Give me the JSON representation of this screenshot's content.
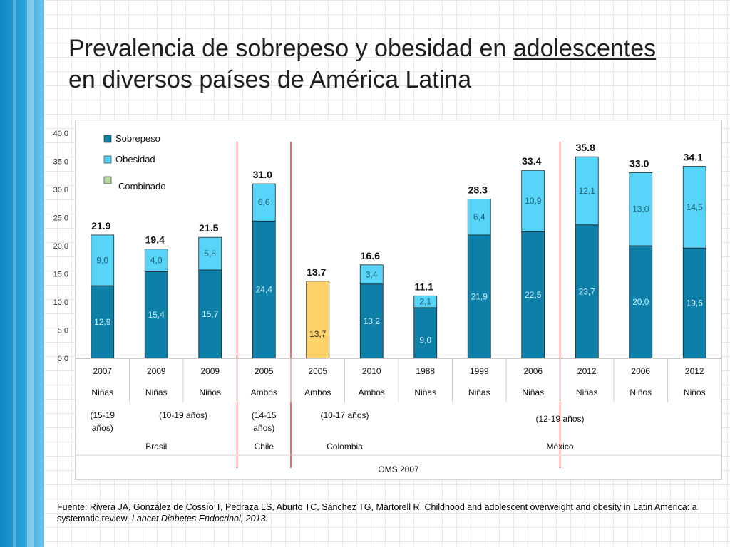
{
  "title": {
    "line1_prefix": "Prevalencia de sobrepeso y obesidad en ",
    "line1_underlined": "adolescentes",
    "line2": "en diversos países de América Latina"
  },
  "colors": {
    "sobrepeso": "#0e7fa6",
    "obesidad": "#57d4f7",
    "combinado": "#ffd36b",
    "combinado_legend": "#b5d99c",
    "separator": "#e0362b",
    "bar_text": "#c9f1ff",
    "axis": "#888888"
  },
  "chart_data": {
    "type": "bar",
    "stacked": true,
    "title": "",
    "ylim": [
      0,
      40
    ],
    "yticks": [
      "0,0",
      "5,0",
      "10,0",
      "15,0",
      "20,0",
      "25,0",
      "30,0",
      "35,0",
      "40,0"
    ],
    "legend": [
      "Sobrepeso",
      "Obesidad",
      "Combinado"
    ],
    "legend_position": "top-left",
    "categories": [
      "2007",
      "2009",
      "2009",
      "2005",
      "2005",
      "2010",
      "1988",
      "1999",
      "2006",
      "2012",
      "2006",
      "2012"
    ],
    "sex": [
      "Niñas",
      "Niñas",
      "Niños",
      "Ambos",
      "Ambos",
      "Ambos",
      "Niñas",
      "Niñas",
      "Niñas",
      "Niñas",
      "Niños",
      "Niños"
    ],
    "series": [
      {
        "name": "Sobrepeso",
        "values": [
          12.9,
          15.4,
          15.7,
          24.4,
          null,
          13.2,
          9.0,
          21.9,
          22.5,
          23.7,
          20.0,
          19.6
        ],
        "labels": [
          "12,9",
          "15,4",
          "15,7",
          "24,4",
          "",
          "13,2",
          "9,0",
          "21,9",
          "22,5",
          "23,7",
          "20,0",
          "19,6"
        ]
      },
      {
        "name": "Obesidad",
        "values": [
          9.0,
          4.0,
          5.8,
          6.6,
          null,
          3.4,
          2.1,
          6.4,
          10.9,
          12.1,
          13.0,
          14.5
        ],
        "labels": [
          "9,0",
          "4,0",
          "5,8",
          "6,6",
          "",
          "3,4",
          "2,1",
          "6,4",
          "10,9",
          "12,1",
          "13,0",
          "14,5"
        ]
      },
      {
        "name": "Combinado",
        "values": [
          null,
          null,
          null,
          null,
          13.7,
          null,
          null,
          null,
          null,
          null,
          null,
          null
        ],
        "labels": [
          "",
          "",
          "",
          "",
          "13,7",
          "",
          "",
          "",
          "",
          "",
          "",
          ""
        ]
      }
    ],
    "totals": [
      "21.9",
      "19.4",
      "21.5",
      "31.0",
      "13.7",
      "16.6",
      "11.1",
      "28.3",
      "33.4",
      "35.8",
      "33.0",
      "34.1"
    ],
    "age_groups": [
      {
        "label": "(15-19 años)",
        "span": [
          0,
          0
        ]
      },
      {
        "label": "(10-19 años)",
        "span": [
          1,
          2
        ]
      },
      {
        "label": "(14-15 años)",
        "span": [
          3,
          3
        ]
      },
      {
        "label": "(10-17 años)",
        "span": [
          4,
          5
        ]
      },
      {
        "label": "(12-19 años)",
        "span": [
          6,
          11
        ]
      }
    ],
    "countries": [
      {
        "label": "Brasil",
        "span": [
          0,
          2
        ]
      },
      {
        "label": "Chile",
        "span": [
          3,
          3
        ]
      },
      {
        "label": "Colombia",
        "span": [
          4,
          5
        ]
      },
      {
        "label": "México",
        "span": [
          6,
          11
        ]
      }
    ],
    "reference": "OMS 2007",
    "separators_after": [
      2,
      3,
      8
    ]
  },
  "footnote": {
    "plain": "Fuente: Rivera JA, González de Cossío T, Pedraza LS, Aburto TC, Sánchez TG, Martorell R. Childhood and adolescent overweight and obesity in Latin America: a systematic review. ",
    "italic": "Lancet Diabetes Endocrinol, 2013."
  }
}
